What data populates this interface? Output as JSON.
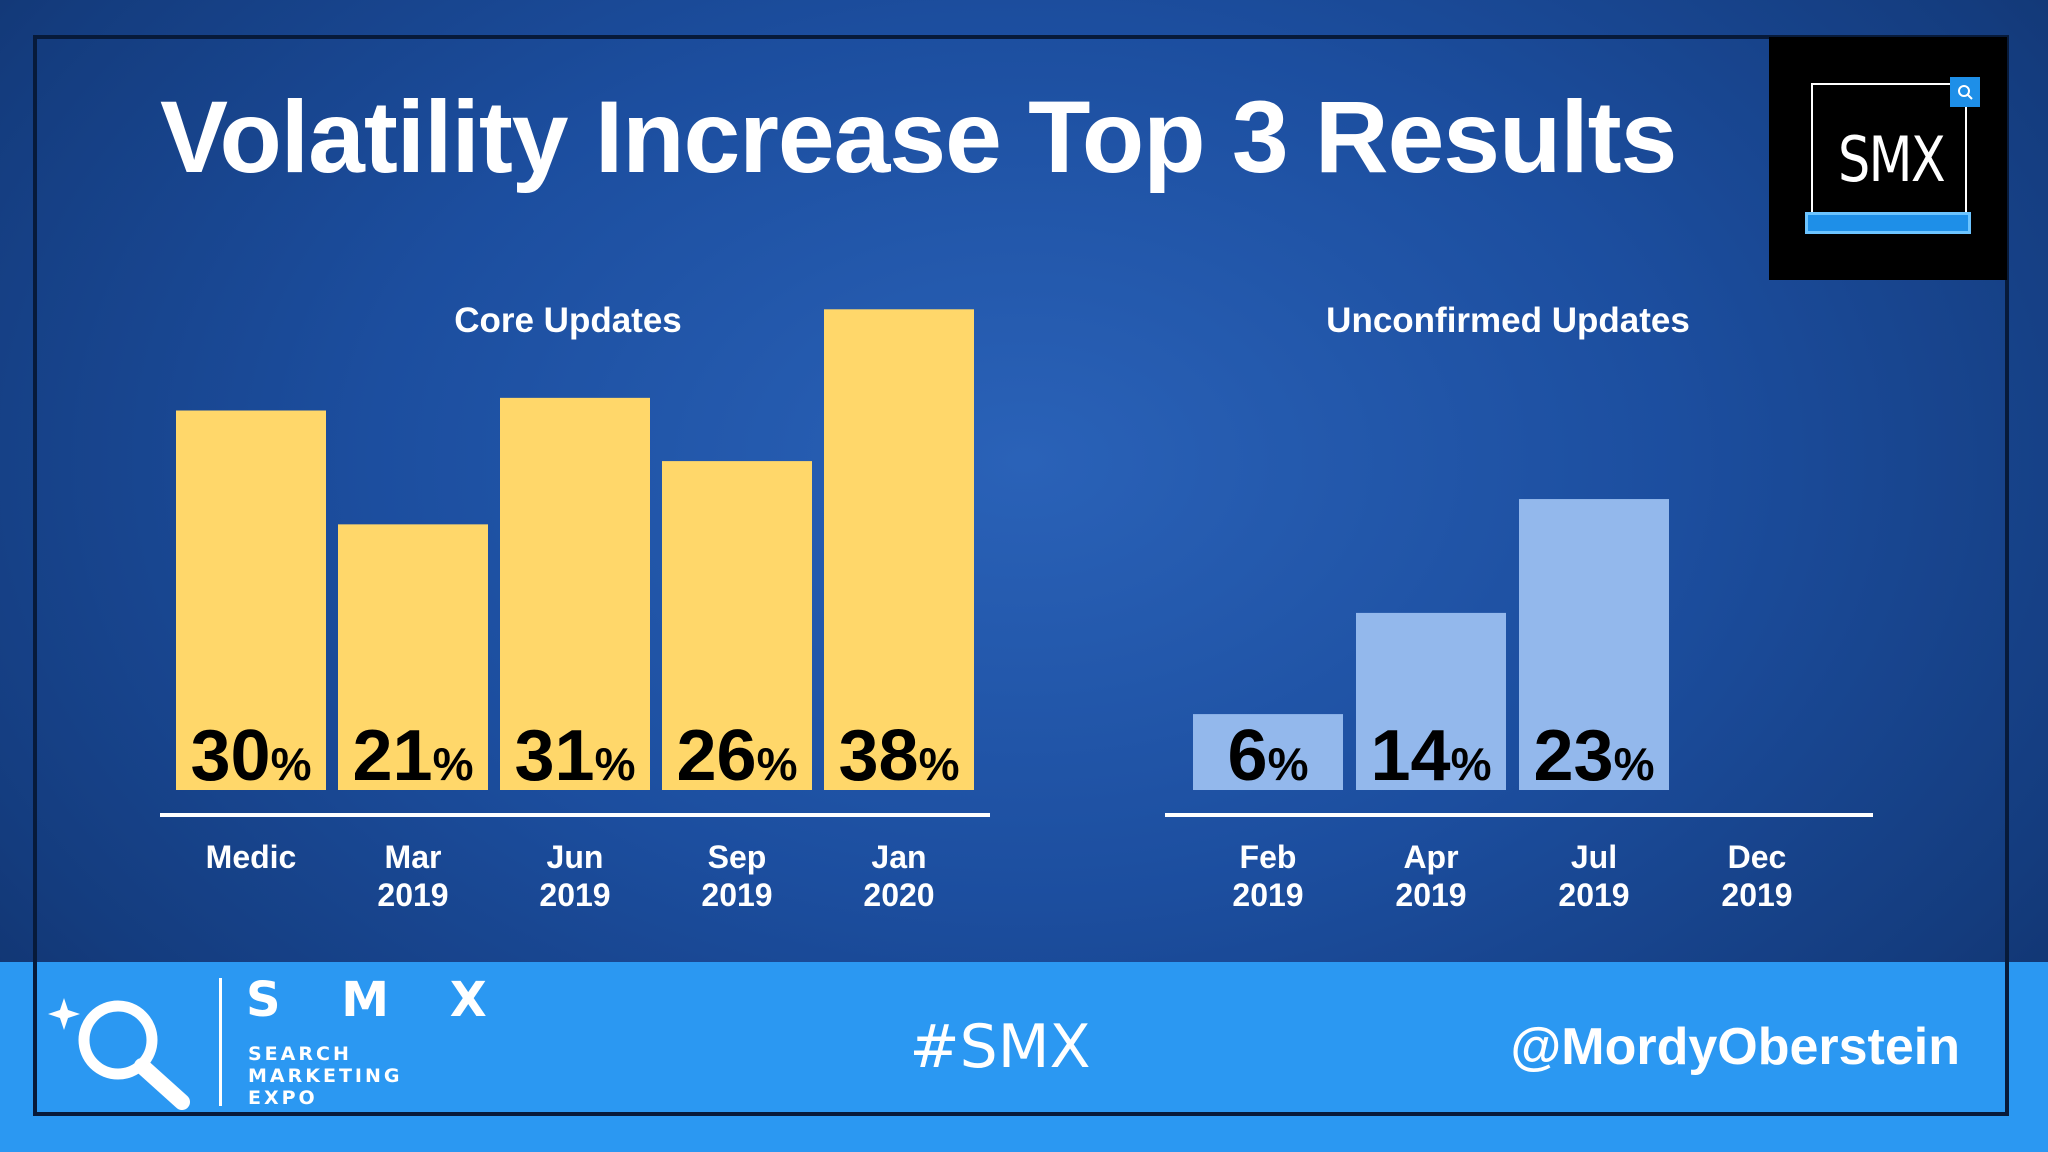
{
  "title": "Volatility Increase Top 3 Results",
  "logo": {
    "text": "SMX"
  },
  "footer": {
    "brand": "S M X",
    "brand_sub": [
      "SEARCH",
      "MARKETING",
      "EXPO"
    ],
    "hashtag": "#SMX",
    "handle": "@MordyOberstein"
  },
  "colors": {
    "core_bar": "#ffd76a",
    "unconfirmed_bar": "#93b8ec",
    "footer": "#2b98f2",
    "background": "#1c4e9f"
  },
  "chart_data": [
    {
      "type": "bar",
      "title": "Core Updates",
      "categories": [
        [
          "Medic"
        ],
        [
          "Mar",
          "2019"
        ],
        [
          "Jun",
          "2019"
        ],
        [
          "Sep",
          "2019"
        ],
        [
          "Jan",
          "2020"
        ]
      ],
      "values": [
        30,
        21,
        31,
        26,
        38
      ],
      "labels": [
        "30",
        "21",
        "31",
        "26",
        "38"
      ],
      "unit": "%",
      "color": "#ffd76a"
    },
    {
      "type": "bar",
      "title": "Unconfirmed Updates",
      "categories": [
        [
          "Feb",
          "2019"
        ],
        [
          "Apr",
          "2019"
        ],
        [
          "Jul",
          "2019"
        ],
        [
          "Dec",
          "2019"
        ]
      ],
      "values": [
        6,
        14,
        23,
        null
      ],
      "labels": [
        "6",
        "14",
        "23",
        ""
      ],
      "unit": "%",
      "color": "#93b8ec"
    }
  ]
}
